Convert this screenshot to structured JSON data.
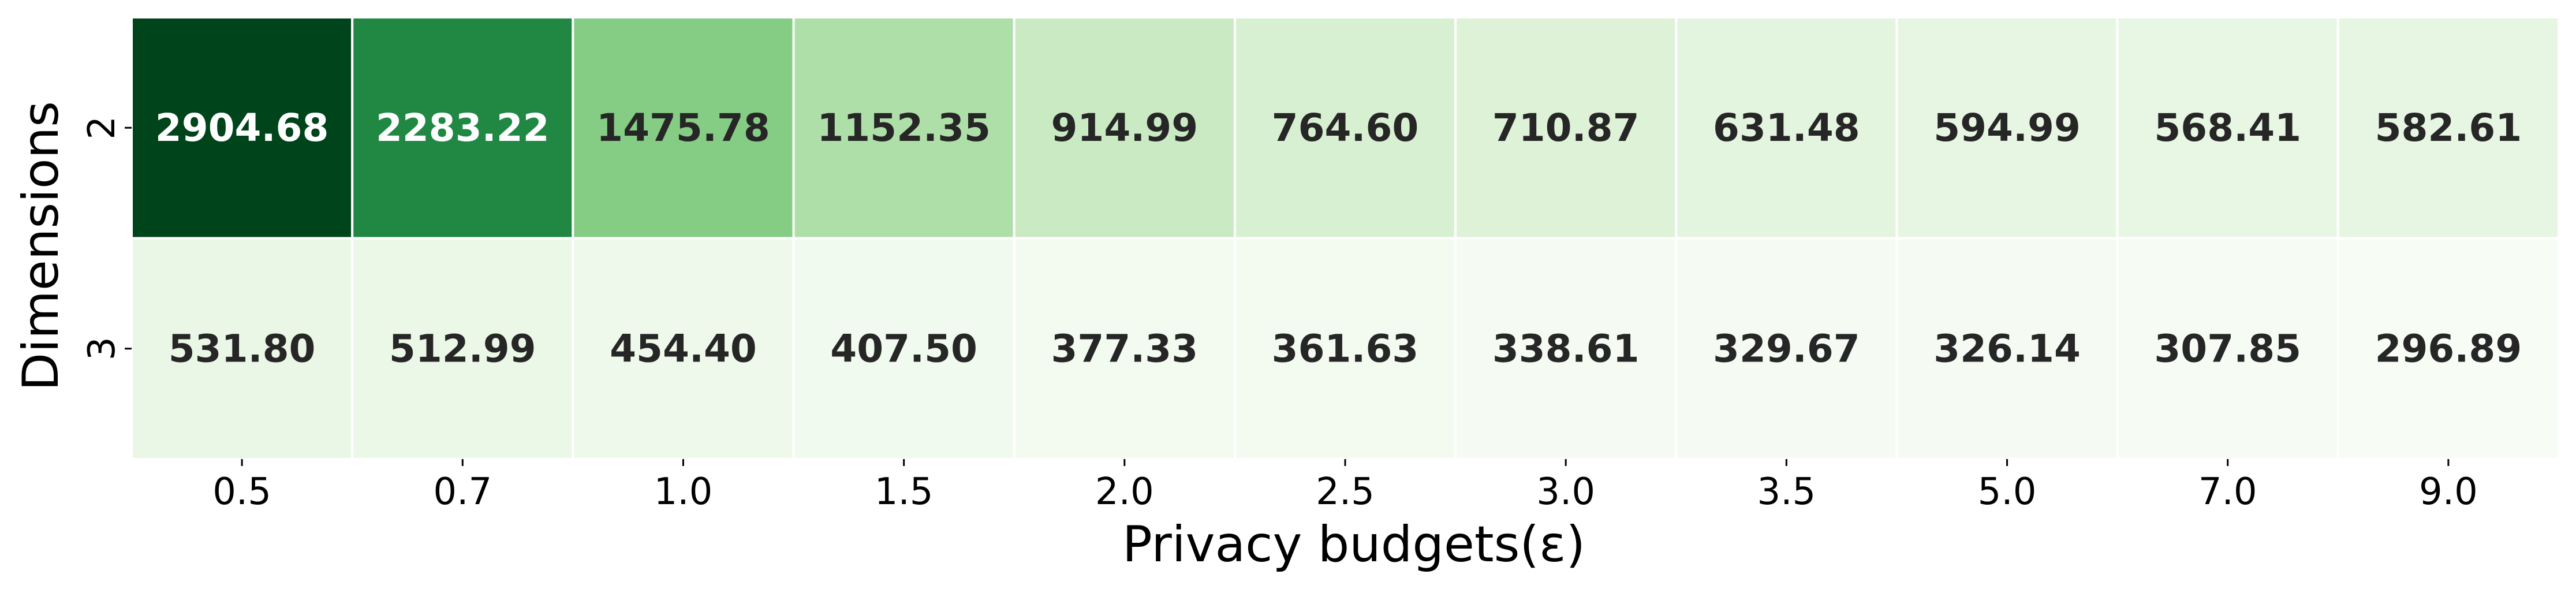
{
  "chart_data": {
    "type": "heatmap",
    "title": "",
    "xlabel": "Privacy budgets(ε)",
    "ylabel": "Dimensions",
    "x_categories": [
      "0.5",
      "0.7",
      "1.0",
      "1.5",
      "2.0",
      "2.5",
      "3.0",
      "3.5",
      "5.0",
      "7.0",
      "9.0"
    ],
    "y_categories": [
      "2",
      "3"
    ],
    "values": [
      [
        2904.68,
        2283.22,
        1475.78,
        1152.35,
        914.99,
        764.6,
        710.87,
        631.48,
        594.99,
        568.41,
        582.61
      ],
      [
        531.8,
        512.99,
        454.4,
        407.5,
        377.33,
        361.63,
        338.61,
        329.67,
        326.14,
        307.85,
        296.89
      ]
    ],
    "value_format": "2 decimals",
    "colormap": "Greens",
    "color_range": [
      296.89,
      2904.68
    ],
    "colorbar": false,
    "grid": false,
    "cell_border_color": "#ffffff",
    "text_color_dark": "#262626",
    "text_color_light": "#ffffff"
  }
}
